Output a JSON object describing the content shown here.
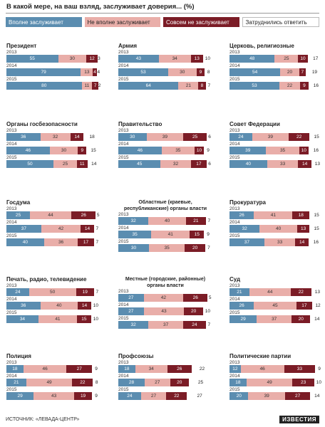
{
  "title": "В какой мере, на ваш взляд, заслуживает доверия... (%)",
  "legend": [
    "Вполне заслуживает",
    "Не вполне заслуживает",
    "Совсем не заслуживает",
    "Затруднились ответить"
  ],
  "colors": {
    "fully": "#5b8db0",
    "not_fully": "#e9aea9",
    "not_at_all": "#7b1c26",
    "unsure": "#ffffff"
  },
  "source": "ИСТОЧНИК: «ЛЕВАДА-ЦЕНТР»",
  "logo": "ИЗВЕСТИЯ",
  "chart_data": {
    "type": "bar",
    "stacked": true,
    "orientation": "horizontal",
    "series_names": [
      "Вполне заслуживает",
      "Не вполне заслуживает",
      "Совсем не заслуживает",
      "Затруднились ответить"
    ],
    "panels": [
      {
        "name": "Президент",
        "rows": [
          {
            "year": "2013",
            "values": [
              55,
              30,
              12,
              3
            ]
          },
          {
            "year": "2014",
            "values": [
              79,
              13,
              4,
              4
            ]
          },
          {
            "year": "2015",
            "values": [
              80,
              11,
              7,
              2
            ]
          }
        ]
      },
      {
        "name": "Армия",
        "rows": [
          {
            "year": "2013",
            "values": [
              43,
              34,
              13,
              10
            ]
          },
          {
            "year": "2014",
            "values": [
              53,
              30,
              9,
              8
            ]
          },
          {
            "year": "2015",
            "values": [
              64,
              21,
              8,
              7
            ]
          }
        ]
      },
      {
        "name": "Церковь, религиозные организации",
        "rows": [
          {
            "year": "2013",
            "values": [
              48,
              25,
              10,
              17
            ]
          },
          {
            "year": "2014",
            "values": [
              54,
              20,
              7,
              19
            ]
          },
          {
            "year": "2015",
            "values": [
              53,
              22,
              9,
              16
            ]
          }
        ]
      },
      {
        "name": "Органы госбезопасности",
        "rows": [
          {
            "year": "2013",
            "values": [
              36,
              32,
              14,
              18
            ]
          },
          {
            "year": "2014",
            "values": [
              46,
              30,
              9,
              15
            ]
          },
          {
            "year": "2015",
            "values": [
              50,
              25,
              11,
              14
            ]
          }
        ]
      },
      {
        "name": "Правительство",
        "rows": [
          {
            "year": "2013",
            "values": [
              30,
              39,
              25,
              6
            ]
          },
          {
            "year": "2014",
            "values": [
              46,
              35,
              10,
              9
            ]
          },
          {
            "year": "2015",
            "values": [
              45,
              32,
              17,
              6
            ]
          }
        ]
      },
      {
        "name": "Совет Федерации",
        "rows": [
          {
            "year": "2013",
            "values": [
              24,
              39,
              22,
              15
            ]
          },
          {
            "year": "2014",
            "values": [
              39,
              35,
              10,
              16
            ]
          },
          {
            "year": "2015",
            "values": [
              40,
              33,
              14,
              13
            ]
          }
        ]
      },
      {
        "name": "Госдума",
        "rows": [
          {
            "year": "2013",
            "values": [
              25,
              44,
              26,
              5
            ]
          },
          {
            "year": "2014",
            "values": [
              37,
              42,
              14,
              7
            ]
          },
          {
            "year": "2015",
            "values": [
              40,
              36,
              17,
              7
            ]
          }
        ]
      },
      {
        "name": "Областные (краевые, республиканские) органы власти",
        "rows": [
          {
            "year": "2013",
            "values": [
              32,
              40,
              21,
              7
            ]
          },
          {
            "year": "2014",
            "values": [
              35,
              41,
              15,
              9
            ]
          },
          {
            "year": "2015",
            "values": [
              30,
              35,
              20,
              7
            ]
          }
        ]
      },
      {
        "name": "Прокуратура",
        "rows": [
          {
            "year": "2013",
            "values": [
              26,
              41,
              18,
              15
            ]
          },
          {
            "year": "2014",
            "values": [
              32,
              40,
              13,
              15
            ]
          },
          {
            "year": "2015",
            "values": [
              37,
              33,
              14,
              16
            ]
          }
        ]
      },
      {
        "name": "Печать, радио, телевидение",
        "rows": [
          {
            "year": "2013",
            "values": [
              24,
              50,
              19,
              7
            ]
          },
          {
            "year": "2014",
            "values": [
              36,
              40,
              14,
              10
            ]
          },
          {
            "year": "2015",
            "values": [
              34,
              41,
              15,
              10
            ]
          }
        ]
      },
      {
        "name": "Местные (городские, районные) органы власти",
        "rows": [
          {
            "year": "2013",
            "values": [
              27,
              42,
              26,
              5
            ]
          },
          {
            "year": "2014",
            "values": [
              27,
              43,
              20,
              10
            ]
          },
          {
            "year": "2015",
            "values": [
              32,
              37,
              24,
              7
            ]
          }
        ]
      },
      {
        "name": "Суд",
        "rows": [
          {
            "year": "2013",
            "values": [
              21,
              44,
              22,
              13
            ]
          },
          {
            "year": "2014",
            "values": [
              26,
              45,
              17,
              12
            ]
          },
          {
            "year": "2015",
            "values": [
              29,
              37,
              20,
              14
            ]
          }
        ]
      },
      {
        "name": "Полиция",
        "rows": [
          {
            "year": "2013",
            "values": [
              18,
              46,
              27,
              9
            ]
          },
          {
            "year": "2014",
            "values": [
              21,
              49,
              22,
              8
            ]
          },
          {
            "year": "2015",
            "values": [
              29,
              43,
              19,
              9
            ]
          }
        ]
      },
      {
        "name": "Профсоюзы",
        "rows": [
          {
            "year": "2013",
            "values": [
              18,
              34,
              26,
              22
            ]
          },
          {
            "year": "2014",
            "values": [
              28,
              27,
              20,
              25
            ]
          },
          {
            "year": "2015",
            "values": [
              24,
              27,
              22,
              27
            ]
          }
        ]
      },
      {
        "name": "Политические партии",
        "rows": [
          {
            "year": "2013",
            "values": [
              12,
              46,
              33,
              9
            ]
          },
          {
            "year": "2014",
            "values": [
              18,
              49,
              23,
              10
            ]
          },
          {
            "year": "2015",
            "values": [
              20,
              39,
              27,
              14
            ]
          }
        ]
      }
    ]
  }
}
